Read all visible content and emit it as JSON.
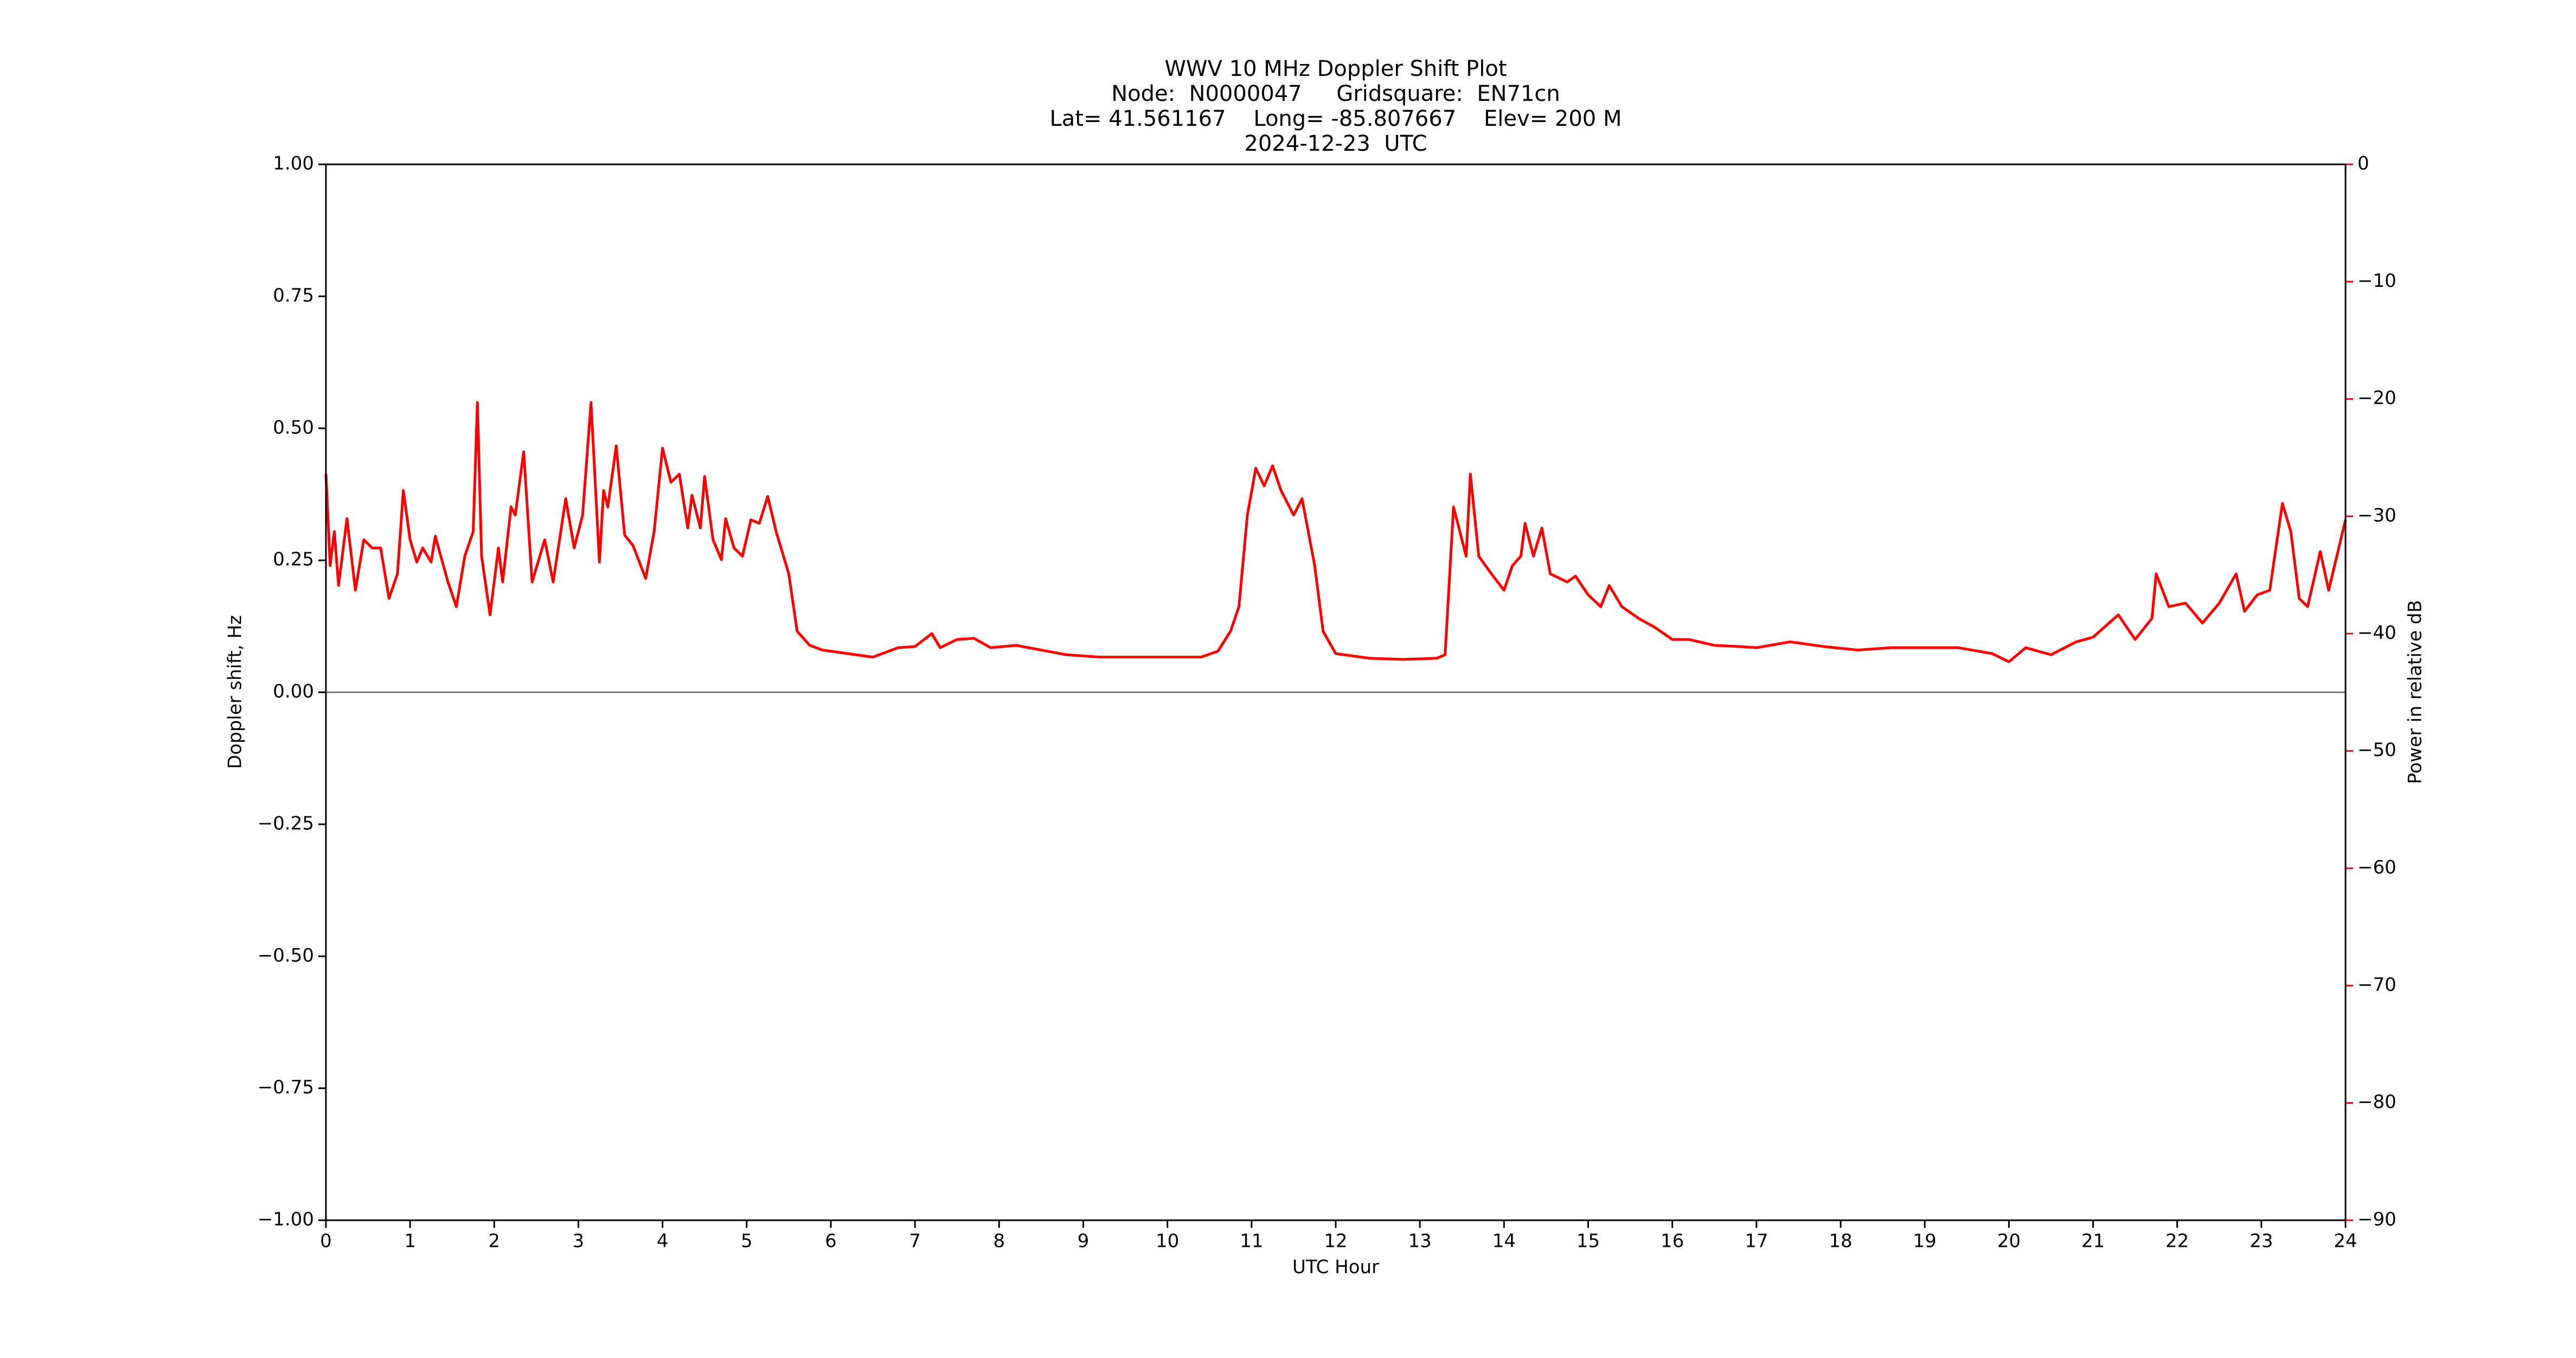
{
  "chart_data": {
    "type": "line",
    "title": [
      "WWV 10 MHz Doppler Shift Plot",
      "Node:  N0000047     Gridsquare:  EN71cn",
      "Lat= 41.561167    Long= -85.807667    Elev= 200 M",
      "2024-12-23  UTC"
    ],
    "xlabel": "UTC Hour",
    "ylabel": "Doppler shift, Hz",
    "y2label": "Power in relative dB",
    "xlim": [
      0,
      24
    ],
    "xticks": [
      0,
      1,
      2,
      3,
      4,
      5,
      6,
      7,
      8,
      9,
      10,
      11,
      12,
      13,
      14,
      15,
      16,
      17,
      18,
      19,
      20,
      21,
      22,
      23,
      24
    ],
    "ylim": [
      -1,
      1
    ],
    "yticks": [
      {
        "value": -1,
        "label": "−1.00"
      },
      {
        "value": -0.75,
        "label": "−0.75"
      },
      {
        "value": -0.5,
        "label": "−0.50"
      },
      {
        "value": -0.25,
        "label": "−0.25"
      },
      {
        "value": 0,
        "label": "0.00"
      },
      {
        "value": 0.25,
        "label": "0.25"
      },
      {
        "value": 0.5,
        "label": "0.50"
      },
      {
        "value": 0.75,
        "label": "0.75"
      },
      {
        "value": 1,
        "label": "1.00"
      }
    ],
    "y2lim": [
      -90,
      0
    ],
    "y2ticks": [
      {
        "value": -90,
        "label": "−90"
      },
      {
        "value": -80,
        "label": "−80"
      },
      {
        "value": -70,
        "label": "−70"
      },
      {
        "value": -60,
        "label": "−60"
      },
      {
        "value": -50,
        "label": "−50"
      },
      {
        "value": -40,
        "label": "−40"
      },
      {
        "value": -30,
        "label": "−30"
      },
      {
        "value": -20,
        "label": "−20"
      },
      {
        "value": -10,
        "label": "−10"
      },
      0
    ],
    "y2color": "#ff0000",
    "series": [
      {
        "color": "#808080",
        "axis": "y",
        "x": [
          0,
          24
        ],
        "values": [
          0,
          0
        ]
      },
      {
        "color": "#ff0000",
        "axis": "y2",
        "x": [
          0,
          0.05,
          0.1,
          0.15,
          0.25,
          0.35,
          0.45,
          0.55,
          0.65,
          0.75,
          0.85,
          0.92,
          1.0,
          1.08,
          1.15,
          1.25,
          1.3,
          1.45,
          1.55,
          1.65,
          1.75,
          1.8,
          1.85,
          1.95,
          2.05,
          2.1,
          2.2,
          2.25,
          2.35,
          2.45,
          2.6,
          2.7,
          2.85,
          2.95,
          3.05,
          3.15,
          3.25,
          3.3,
          3.35,
          3.45,
          3.55,
          3.65,
          3.8,
          3.9,
          4.0,
          4.1,
          4.2,
          4.3,
          4.35,
          4.45,
          4.5,
          4.6,
          4.7,
          4.75,
          4.85,
          4.95,
          5.05,
          5.15,
          5.25,
          5.35,
          5.5,
          5.6,
          5.75,
          5.9,
          6.2,
          6.5,
          6.8,
          7.0,
          7.2,
          7.3,
          7.5,
          7.7,
          7.9,
          8.2,
          8.5,
          8.8,
          9.2,
          9.6,
          10.0,
          10.4,
          10.6,
          10.75,
          10.85,
          10.95,
          11.05,
          11.15,
          11.25,
          11.35,
          11.5,
          11.6,
          11.75,
          11.85,
          12.0,
          12.4,
          12.8,
          13.2,
          13.3,
          13.4,
          13.55,
          13.6,
          13.7,
          13.85,
          14.0,
          14.1,
          14.2,
          14.25,
          14.35,
          14.45,
          14.55,
          14.75,
          14.85,
          15.0,
          15.15,
          15.25,
          15.4,
          15.6,
          15.8,
          16.0,
          16.2,
          16.5,
          16.8,
          17.0,
          17.4,
          17.8,
          18.2,
          18.6,
          19.0,
          19.4,
          19.8,
          20.0,
          20.2,
          20.5,
          20.8,
          21.0,
          21.3,
          21.5,
          21.7,
          21.75,
          21.9,
          22.1,
          22.3,
          22.5,
          22.7,
          22.8,
          22.95,
          23.1,
          23.25,
          23.35,
          23.45,
          23.55,
          23.7,
          23.8,
          24.0
        ],
        "values": [
          -26.4,
          -34.2,
          -31.3,
          -35.9,
          -30.2,
          -36.3,
          -32.0,
          -32.7,
          -32.7,
          -37.0,
          -34.9,
          -27.8,
          -32.0,
          -33.9,
          -32.7,
          -33.9,
          -31.7,
          -35.6,
          -37.7,
          -33.4,
          -31.3,
          -20.3,
          -33.4,
          -38.4,
          -32.7,
          -35.6,
          -29.2,
          -29.9,
          -24.5,
          -35.6,
          -32.0,
          -35.6,
          -28.5,
          -32.7,
          -29.9,
          -20.3,
          -33.9,
          -27.8,
          -29.2,
          -24.0,
          -31.6,
          -32.5,
          -35.3,
          -31.3,
          -24.2,
          -27.1,
          -26.4,
          -31.0,
          -28.2,
          -31.0,
          -26.6,
          -32.0,
          -33.7,
          -30.2,
          -32.7,
          -33.4,
          -30.3,
          -30.6,
          -28.3,
          -31.3,
          -34.9,
          -39.8,
          -41.0,
          -41.4,
          -41.7,
          -42.0,
          -41.2,
          -41.1,
          -40.0,
          -41.2,
          -40.5,
          -40.4,
          -41.2,
          -41.0,
          -41.4,
          -41.8,
          -42.0,
          -42.0,
          -42.0,
          -42.0,
          -41.5,
          -39.8,
          -37.7,
          -29.9,
          -25.9,
          -27.4,
          -25.7,
          -27.8,
          -29.9,
          -28.5,
          -34.2,
          -39.8,
          -41.7,
          -42.1,
          -42.2,
          -42.1,
          -41.8,
          -29.2,
          -33.4,
          -26.4,
          -33.4,
          -34.9,
          -36.3,
          -34.2,
          -33.4,
          -30.6,
          -33.4,
          -31.0,
          -34.9,
          -35.6,
          -35.1,
          -36.7,
          -37.7,
          -35.9,
          -37.7,
          -38.7,
          -39.5,
          -40.5,
          -40.5,
          -41.0,
          -41.1,
          -41.2,
          -40.7,
          -41.1,
          -41.4,
          -41.2,
          -41.2,
          -41.2,
          -41.7,
          -42.4,
          -41.2,
          -41.8,
          -40.7,
          -40.3,
          -38.4,
          -40.5,
          -38.7,
          -34.9,
          -37.7,
          -37.4,
          -39.1,
          -37.4,
          -34.9,
          -38.1,
          -36.7,
          -36.3,
          -28.9,
          -31.3,
          -37.0,
          -37.7,
          -33.0,
          -36.3,
          -30.3
        ]
      }
    ]
  }
}
